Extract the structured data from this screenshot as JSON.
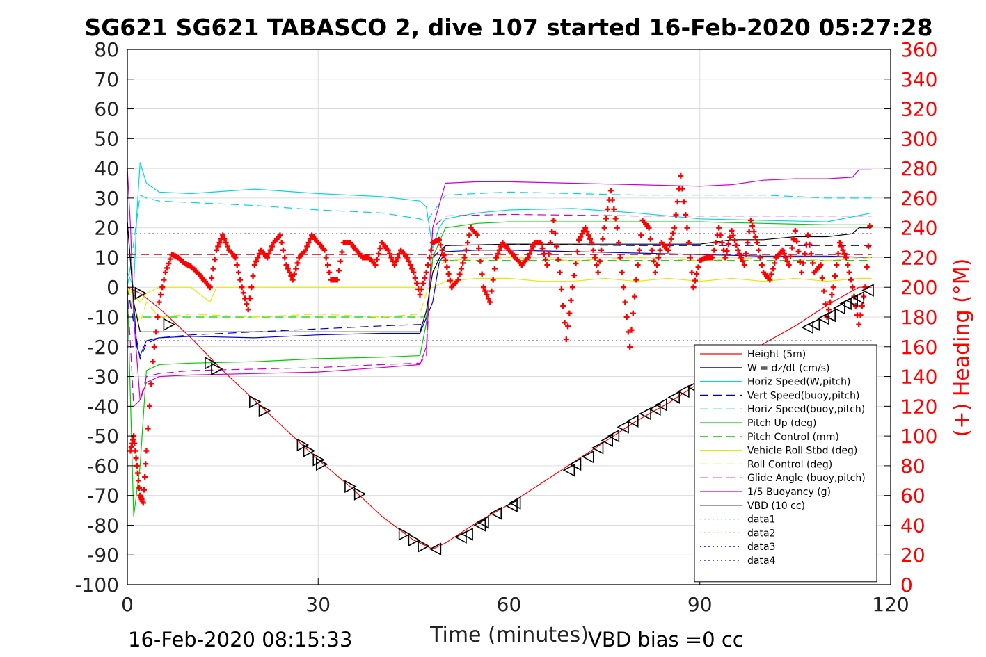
{
  "chart_data": {
    "type": "line",
    "title": "SG621 SG621 TABASCO 2, dive 107 started 16-Feb-2020 05:27:28",
    "xlabel": "Time (minutes)",
    "ylabel_right": "(+) Heading (°M)",
    "footer_left": "16-Feb-2020 08:15:33",
    "footer_right": "VBD bias =0 cc",
    "xlim": [
      0,
      120
    ],
    "ylim_left": [
      -100,
      80
    ],
    "ylim_right": [
      0,
      360
    ],
    "xticks": [
      "0",
      "30",
      "60",
      "90",
      "120"
    ],
    "yticks_left": [
      "-100",
      "-90",
      "-80",
      "-70",
      "-60",
      "-50",
      "-40",
      "-30",
      "-20",
      "-10",
      "0",
      "10",
      "20",
      "30",
      "40",
      "50",
      "60",
      "70",
      "80"
    ],
    "yticks_right": [
      "0",
      "20",
      "40",
      "60",
      "80",
      "100",
      "120",
      "140",
      "160",
      "180",
      "200",
      "220",
      "240",
      "260",
      "280",
      "300",
      "320",
      "340",
      "360"
    ],
    "grid": true,
    "legend_position": "lower-right",
    "colors": {
      "right_axis": "#ff0000",
      "grid": "#dcdcdc"
    },
    "legend": [
      {
        "label": "Height (5m)",
        "color": "#ff0000",
        "dash": ""
      },
      {
        "label": "W = dz/dt (cm/s)",
        "color": "#0000cc",
        "dash": ""
      },
      {
        "label": "Horiz Speed(W,pitch)",
        "color": "#00d8d8",
        "dash": ""
      },
      {
        "label": "Vert Speed(buoy,pitch)",
        "color": "#0000cc",
        "dash": "12 7"
      },
      {
        "label": "Horiz Speed(buoy,pitch)",
        "color": "#00d8d8",
        "dash": "12 7"
      },
      {
        "label": "Pitch Up (deg)",
        "color": "#00cc00",
        "dash": ""
      },
      {
        "label": "Pitch Control (mm)",
        "color": "#00cc00",
        "dash": "12 7"
      },
      {
        "label": "Vehicle Roll Stbd (deg)",
        "color": "#e8e800",
        "dash": ""
      },
      {
        "label": "Roll Control (deg)",
        "color": "#e8e800",
        "dash": "12 7"
      },
      {
        "label": "Glide Angle (buoy,pitch)",
        "color": "#cc00cc",
        "dash": "12 7"
      },
      {
        "label": "1/5 Buoyancy (g)",
        "color": "#cc00cc",
        "dash": ""
      },
      {
        "label": "VBD (10 cc)",
        "color": "#000000",
        "dash": ""
      },
      {
        "label": "data1",
        "color": "#00cc00",
        "dash": "2 4"
      },
      {
        "label": "data2",
        "color": "#00cc00",
        "dash": "2 4"
      },
      {
        "label": "data3",
        "color": "#0000cc",
        "dash": "2 4"
      },
      {
        "label": "data4",
        "color": "#0000cc",
        "dash": "2 4"
      }
    ],
    "series": [
      {
        "name": "Height (5m)",
        "axis": "left",
        "x": [
          0,
          2,
          5,
          10,
          15,
          20,
          25,
          30,
          35,
          40,
          45,
          48,
          50,
          55,
          60,
          65,
          70,
          75,
          80,
          85,
          90,
          95,
          100,
          105,
          110,
          115,
          117
        ],
        "y": [
          0,
          -2,
          -7,
          -17,
          -28,
          -38,
          -48,
          -58,
          -67,
          -77,
          -85,
          -88,
          -86,
          -79,
          -73,
          -66,
          -59,
          -52,
          -45,
          -39,
          -32,
          -26,
          -19,
          -13,
          -6,
          0,
          0
        ]
      },
      {
        "name": "W = dz/dt (cm/s)",
        "axis": "left",
        "x": [
          0,
          1,
          1.5,
          2,
          3,
          5,
          10,
          20,
          30,
          40,
          46,
          48,
          49,
          50,
          55,
          60,
          70,
          80,
          90,
          100,
          110,
          117
        ],
        "y": [
          22,
          -5,
          -20,
          -23,
          -18,
          -17,
          -16.5,
          -17,
          -16,
          -15.5,
          -15.5,
          -5,
          8,
          12,
          12.5,
          12.5,
          12,
          11.5,
          11,
          10.5,
          10.5,
          10
        ]
      },
      {
        "name": "Horiz Speed(W,pitch)",
        "axis": "left",
        "x": [
          0,
          1,
          1.5,
          2,
          3,
          5,
          10,
          20,
          30,
          40,
          46,
          47,
          48,
          49,
          50,
          55,
          60,
          70,
          80,
          90,
          100,
          110,
          117
        ],
        "y": [
          5,
          0,
          25,
          42,
          35,
          32,
          31.5,
          33,
          31.5,
          30.5,
          29,
          27,
          13,
          20,
          23,
          25,
          26,
          26.5,
          25,
          23,
          22.5,
          22,
          25
        ]
      },
      {
        "name": "Vert Speed(buoy,pitch)",
        "axis": "left",
        "x": [
          0,
          1,
          2,
          3,
          5,
          10,
          20,
          30,
          40,
          46,
          47,
          48,
          50,
          60,
          80,
          100,
          110,
          117
        ],
        "y": [
          0,
          -12,
          -24,
          -19,
          -17,
          -16,
          -15,
          -14,
          -13,
          -12.5,
          -12,
          10,
          14,
          14.5,
          14,
          14,
          14,
          14
        ]
      },
      {
        "name": "Horiz Speed(buoy,pitch)",
        "axis": "left",
        "x": [
          0,
          1,
          2,
          3,
          5,
          10,
          20,
          30,
          40,
          46,
          47,
          48,
          50,
          60,
          80,
          100,
          110,
          117
        ],
        "y": [
          0,
          15,
          31,
          30,
          29,
          28.5,
          27.5,
          26,
          25,
          23,
          22,
          25,
          31,
          32,
          31,
          31,
          30,
          30
        ]
      },
      {
        "name": "Pitch Up (deg)",
        "axis": "left",
        "x": [
          0,
          1,
          2,
          3,
          5,
          10,
          20,
          30,
          40,
          46,
          47,
          48,
          50,
          55,
          60,
          70,
          80,
          90,
          100,
          110,
          117
        ],
        "y": [
          0,
          -77,
          -60,
          -28,
          -26,
          -25.5,
          -25,
          -24,
          -23.5,
          -23,
          -12,
          10,
          20,
          21.5,
          22,
          22,
          22,
          22,
          21.5,
          21,
          21
        ]
      },
      {
        "name": "Pitch Control (mm)",
        "axis": "left",
        "x": [
          0,
          1,
          2,
          3,
          46,
          47,
          48,
          50,
          117
        ],
        "y": [
          0,
          -10,
          -10,
          -10,
          -10,
          -10,
          9,
          9,
          9
        ]
      },
      {
        "name": "Vehicle Roll Stbd (deg)",
        "axis": "left",
        "x": [
          0,
          2,
          3,
          5,
          10,
          13,
          14,
          20,
          25,
          30,
          35,
          40,
          45,
          46,
          48,
          50,
          55,
          60,
          65,
          70,
          75,
          80,
          85,
          90,
          95,
          100,
          105,
          110,
          115,
          117
        ],
        "y": [
          0,
          -5,
          -2,
          0,
          0,
          -5,
          0,
          0,
          0,
          0,
          0,
          0,
          0,
          -1,
          0,
          2,
          3,
          3,
          2,
          2,
          3,
          2,
          3,
          2,
          3,
          2,
          3,
          2,
          3,
          3
        ]
      },
      {
        "name": "Roll Control (deg)",
        "axis": "left",
        "x": [
          0,
          2,
          3,
          5,
          10,
          20,
          30,
          40,
          46,
          48,
          50,
          60,
          70,
          80,
          90,
          100,
          110,
          117
        ],
        "y": [
          0,
          -12,
          -5,
          -10,
          -9,
          -10,
          -9,
          -10,
          -9,
          5,
          9,
          10,
          9,
          10,
          9,
          10,
          9,
          10
        ]
      },
      {
        "name": "Glide Angle (buoy,pitch)",
        "axis": "left",
        "x": [
          0,
          1,
          2,
          3,
          5,
          10,
          20,
          30,
          40,
          46,
          47,
          48,
          50,
          60,
          80,
          100,
          110,
          117
        ],
        "y": [
          0,
          -40,
          -38,
          -30,
          -29,
          -28,
          -27.5,
          -27,
          -26,
          -25.5,
          -23,
          20,
          24,
          24.5,
          24,
          24,
          24,
          24
        ]
      },
      {
        "name": "1/5 Buoyancy (g)",
        "axis": "left",
        "x": [
          0,
          0.5,
          1,
          2,
          3,
          5,
          10,
          20,
          30,
          40,
          46,
          47,
          48,
          50,
          55,
          60,
          70,
          80,
          90,
          95,
          100,
          105,
          110,
          114,
          115,
          116,
          117
        ],
        "y": [
          40,
          20,
          -10,
          -38,
          -32,
          -30,
          -29.5,
          -29,
          -28.5,
          -27,
          -26,
          -20,
          20,
          35,
          35.5,
          35.5,
          35,
          34.5,
          34,
          34.5,
          36,
          36.5,
          36.5,
          37,
          39.5,
          39.5,
          39.5
        ]
      },
      {
        "name": "VBD (10 cc)",
        "axis": "left",
        "x": [
          0,
          1,
          2,
          5,
          10,
          20,
          30,
          40,
          46,
          47,
          48,
          50,
          60,
          70,
          80,
          90,
          95,
          100,
          105,
          110,
          114,
          115,
          117
        ],
        "y": [
          22,
          -5,
          -15,
          -15,
          -15,
          -15,
          -15,
          -15,
          -15,
          -8,
          5,
          14,
          14.5,
          14.5,
          14.5,
          14.5,
          16,
          16,
          17,
          17,
          18,
          20,
          20
        ]
      },
      {
        "name": "data1",
        "axis": "left",
        "x": [
          0,
          117
        ],
        "y": [
          11,
          11
        ],
        "color": "#cc0000",
        "dash": "12 7"
      },
      {
        "name": "data3",
        "axis": "left",
        "x": [
          0,
          117
        ],
        "y": [
          18,
          18
        ]
      },
      {
        "name": "data4",
        "axis": "left",
        "x": [
          0,
          117
        ],
        "y": [
          -18,
          -18
        ]
      }
    ],
    "heading": {
      "name": "(+) Heading",
      "axis": "right",
      "x": [
        0.5,
        1,
        1.5,
        2,
        2.5,
        3,
        4,
        5,
        6,
        7,
        8,
        9,
        10,
        11,
        12,
        13,
        14,
        15,
        16,
        17,
        18,
        19,
        20,
        21,
        22,
        23,
        24,
        25,
        26,
        27,
        28,
        29,
        30,
        31,
        32,
        33,
        34,
        35,
        36,
        37,
        38,
        39,
        40,
        41,
        42,
        43,
        44,
        45,
        46,
        47,
        48,
        49,
        50,
        51,
        52,
        53,
        54,
        55,
        56,
        57,
        58,
        59,
        60,
        61,
        62,
        63,
        64,
        65,
        66,
        67,
        68,
        69,
        70,
        71,
        72,
        73,
        74,
        75,
        76,
        77,
        78,
        79,
        80,
        81,
        82,
        83,
        84,
        85,
        86,
        87,
        88,
        89,
        90,
        91,
        92,
        93,
        94,
        95,
        96,
        97,
        98,
        99,
        100,
        101,
        102,
        103,
        104,
        105,
        106,
        107,
        108,
        109,
        110,
        111,
        112,
        113,
        114,
        115,
        116,
        117
      ],
      "y": [
        90,
        100,
        80,
        60,
        55,
        90,
        150,
        190,
        210,
        222,
        220,
        216,
        214,
        210,
        205,
        200,
        225,
        235,
        225,
        220,
        200,
        185,
        215,
        225,
        220,
        230,
        235,
        215,
        205,
        220,
        225,
        235,
        230,
        225,
        205,
        205,
        230,
        230,
        225,
        220,
        220,
        215,
        230,
        225,
        215,
        225,
        220,
        210,
        195,
        210,
        230,
        232,
        218,
        200,
        205,
        220,
        240,
        235,
        200,
        190,
        220,
        230,
        225,
        220,
        215,
        220,
        230,
        230,
        215,
        245,
        210,
        165,
        200,
        232,
        240,
        230,
        210,
        240,
        265,
        240,
        200,
        160,
        205,
        245,
        240,
        210,
        230,
        225,
        240,
        275,
        240,
        200,
        218,
        220,
        220,
        240,
        220,
        238,
        225,
        215,
        245,
        230,
        210,
        205,
        220,
        225,
        215,
        238,
        210,
        235,
        210,
        215,
        180,
        200,
        230,
        220,
        200,
        175,
        200,
        255
      ]
    },
    "markers": {
      "name": "Height (5m)",
      "axis": "left",
      "x": [
        2,
        6.5,
        13,
        14,
        20,
        21.5,
        27.5,
        28.5,
        30,
        30.5,
        35,
        36.5,
        43.5,
        45,
        46.5,
        48.5,
        52.5,
        53.5,
        55.5,
        56,
        58,
        60.5,
        61,
        69.5,
        70.5,
        72.5,
        74,
        75.5,
        76.5,
        78,
        79.5,
        81.5,
        83,
        84,
        86,
        87.5,
        89,
        107,
        108,
        109.5,
        110.5,
        112,
        113,
        114,
        115,
        116.5
      ],
      "y": [
        -2,
        -12.5,
        -25.5,
        -27.5,
        -38.5,
        -41.5,
        -53,
        -55,
        -58,
        -59.5,
        -67,
        -69.5,
        -83,
        -85,
        -87,
        -88,
        -84,
        -83,
        -80,
        -79,
        -76,
        -73.5,
        -72.5,
        -61.5,
        -59.5,
        -57,
        -54,
        -51.5,
        -50,
        -47,
        -45,
        -42.5,
        -41,
        -39.5,
        -37,
        -35,
        -33.5,
        -13.5,
        -12.5,
        -10.5,
        -9.5,
        -7,
        -5.5,
        -4.5,
        -3.5,
        -1
      ]
    }
  }
}
